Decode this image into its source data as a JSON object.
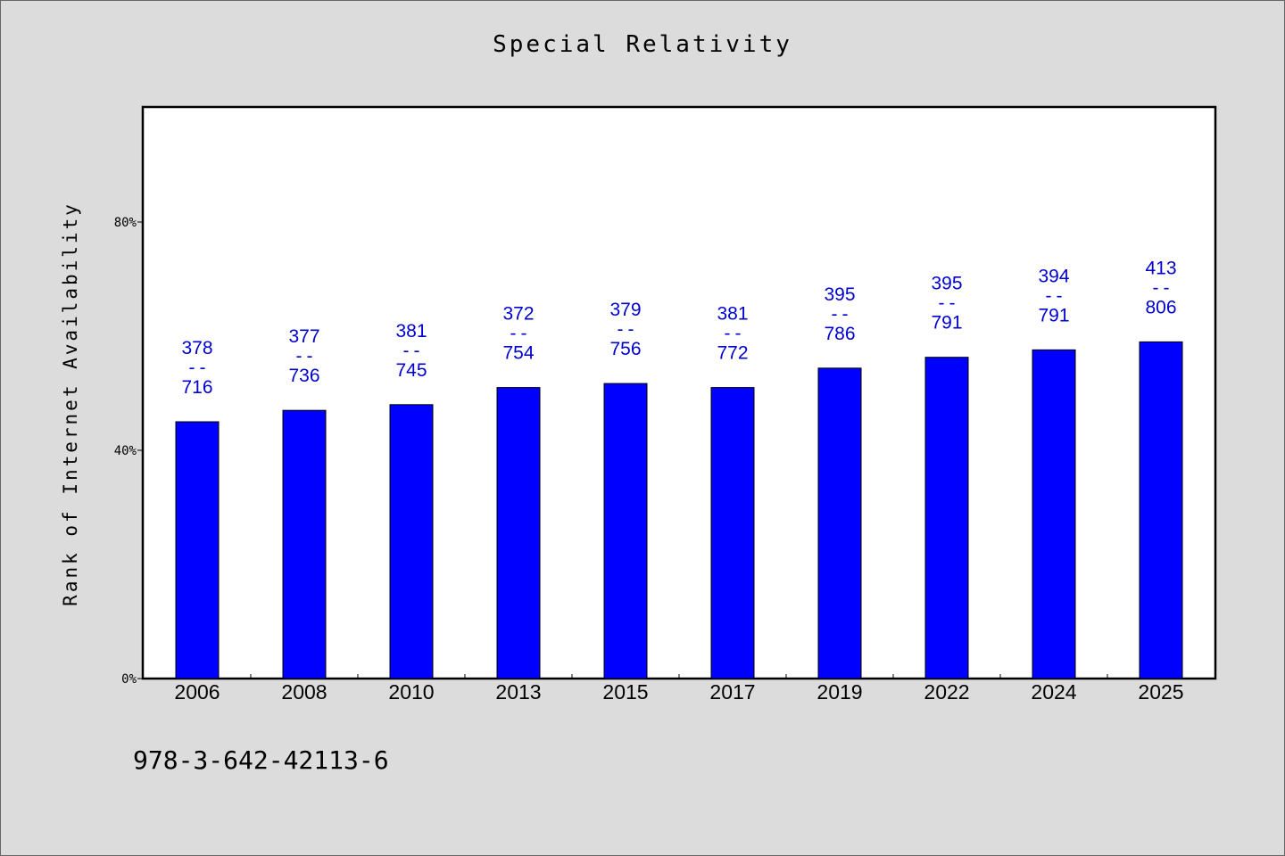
{
  "chart_data": {
    "type": "bar",
    "title": "Special Relativity",
    "xlabel": "",
    "ylabel": "Rank of Internet Availability",
    "ylim": [
      0,
      100
    ],
    "yticks": [
      "0%",
      "40%",
      "80%"
    ],
    "ytick_values": [
      0,
      40,
      80
    ],
    "categories": [
      "2006",
      "2008",
      "2010",
      "2013",
      "2015",
      "2017",
      "2019",
      "2022",
      "2024",
      "2025"
    ],
    "values": [
      45,
      47,
      48,
      51,
      51.7,
      51,
      54.4,
      56.3,
      57.6,
      59
    ],
    "data_labels": [
      [
        "378",
        "--",
        "716"
      ],
      [
        "377",
        "--",
        "736"
      ],
      [
        "381",
        "--",
        "745"
      ],
      [
        "372",
        "--",
        "754"
      ],
      [
        "379",
        "--",
        "756"
      ],
      [
        "381",
        "--",
        "772"
      ],
      [
        "395",
        "--",
        "786"
      ],
      [
        "395",
        "--",
        "791"
      ],
      [
        "394",
        "--",
        "791"
      ],
      [
        "413",
        "--",
        "806"
      ]
    ],
    "grid": false,
    "bar_color": "#0000ff",
    "label_color": "#0000cc"
  },
  "footer": {
    "isbn": "978-3-642-42113-6"
  }
}
